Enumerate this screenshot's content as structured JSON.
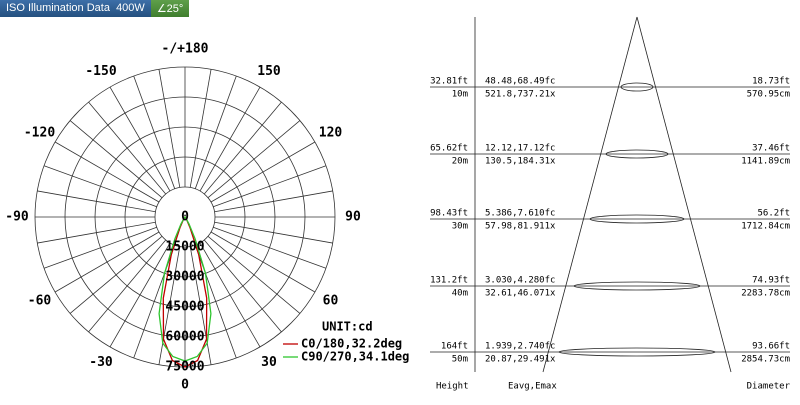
{
  "header": {
    "title": "ISO Illumination Data",
    "power": "400W",
    "angle": "∠25°"
  },
  "polar": {
    "unit": "UNIT:cd",
    "rlim": [
      0,
      75000
    ],
    "rticks": [
      0,
      15000,
      30000,
      45000,
      60000,
      75000
    ],
    "angle_ticks": [
      {
        "value": 180,
        "label": "-/+180"
      },
      150,
      120,
      90,
      60,
      30,
      0,
      -30,
      -60,
      -90,
      -120,
      -150
    ],
    "series": [
      {
        "name": "C0/180,32.2deg",
        "color": "#c00000",
        "angles": [
          -40,
          -35,
          -30,
          -25,
          -20,
          -15,
          -10,
          -5,
          0,
          5,
          10,
          15,
          20,
          25,
          30,
          35,
          40
        ],
        "values": [
          0,
          500,
          2000,
          6000,
          20000,
          42000,
          62000,
          72000,
          75000,
          72000,
          62000,
          42000,
          20000,
          6000,
          2000,
          500,
          0
        ]
      },
      {
        "name": "C90/270,34.1deg",
        "color": "#2fc52f",
        "angles": [
          -40,
          -35,
          -30,
          -25,
          -20,
          -15,
          -10,
          -5,
          0,
          5,
          10,
          15,
          20,
          25,
          30,
          35,
          40
        ],
        "values": [
          0,
          1000,
          4000,
          12000,
          30000,
          50000,
          64000,
          70000,
          72000,
          70000,
          64000,
          50000,
          30000,
          12000,
          4000,
          1000,
          0
        ]
      }
    ]
  },
  "cone": {
    "rows": [
      {
        "ft": "32.81ft",
        "m": "10m",
        "fc": "48.48,68.49fc",
        "lx": "521.8,737.21x",
        "dft": "18.73ft",
        "dcm": "570.95cm"
      },
      {
        "ft": "65.62ft",
        "m": "20m",
        "fc": "12.12,17.12fc",
        "lx": "130.5,184.31x",
        "dft": "37.46ft",
        "dcm": "1141.89cm"
      },
      {
        "ft": "98.43ft",
        "m": "30m",
        "fc": "5.386,7.610fc",
        "lx": "57.98,81.911x",
        "dft": "56.2ft",
        "dcm": "1712.84cm"
      },
      {
        "ft": "131.2ft",
        "m": "40m",
        "fc": "3.030,4.280fc",
        "lx": "32.61,46.071x",
        "dft": "74.93ft",
        "dcm": "2283.78cm"
      },
      {
        "ft": "164ft",
        "m": "50m",
        "fc": "1.939,2.740fc",
        "lx": "20.87,29.491x",
        "dft": "93.66ft",
        "dcm": "2854.73cm"
      }
    ],
    "footer": {
      "height": "Height",
      "eavg": "Eavg,Emax",
      "diameter": "Diameter"
    }
  }
}
